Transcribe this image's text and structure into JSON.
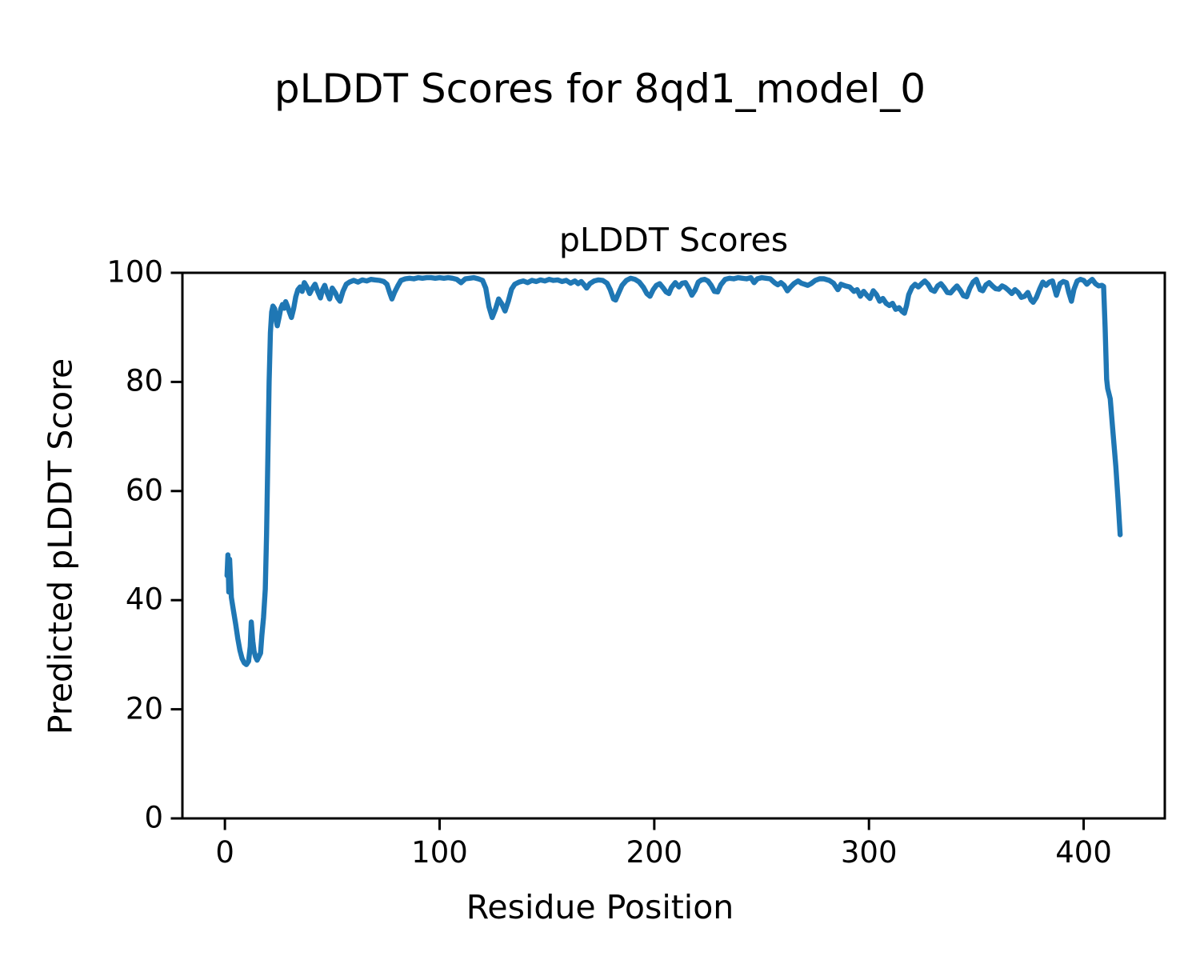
{
  "figure": {
    "suptitle": "pLDDT Scores for 8qd1_model_0",
    "axes_title": "pLDDT Scores",
    "xlabel": "Residue Position",
    "ylabel": "Predicted pLDDT Score",
    "background_color": "#ffffff",
    "text_color": "#000000"
  },
  "chart_data": {
    "type": "line",
    "title": "pLDDT Scores",
    "suptitle": "pLDDT Scores for 8qd1_model_0",
    "xlabel": "Residue Position",
    "ylabel": "Predicted pLDDT Score",
    "xlim": [
      -19.8,
      437.8
    ],
    "ylim": [
      0,
      100
    ],
    "xticks": [
      0,
      100,
      200,
      300,
      400
    ],
    "yticks": [
      0,
      20,
      40,
      60,
      80,
      100
    ],
    "grid": false,
    "legend": null,
    "line_color": "#1f77b4",
    "spine_color": "#000000",
    "series": [
      {
        "name": "pLDDT",
        "points": [
          [
            1,
            44.5
          ],
          [
            1.4,
            48.3
          ],
          [
            1.8,
            41.5
          ],
          [
            2.2,
            47.5
          ],
          [
            2.6,
            44
          ],
          [
            3,
            40.5
          ],
          [
            4,
            38
          ],
          [
            5,
            35.6
          ],
          [
            6,
            33
          ],
          [
            7,
            30.8
          ],
          [
            8,
            29.3
          ],
          [
            9,
            28.5
          ],
          [
            10,
            28.2
          ],
          [
            11,
            28.8
          ],
          [
            11.8,
            31.5
          ],
          [
            12.3,
            36
          ],
          [
            13,
            32.5
          ],
          [
            13.6,
            30.6
          ],
          [
            14.3,
            29.6
          ],
          [
            15,
            29
          ],
          [
            16,
            29.8
          ],
          [
            16.6,
            30.3
          ],
          [
            17.2,
            33.5
          ],
          [
            18,
            36.8
          ],
          [
            18.8,
            42
          ],
          [
            19.4,
            52
          ],
          [
            20,
            66
          ],
          [
            20.6,
            80
          ],
          [
            21.2,
            89
          ],
          [
            21.8,
            92.8
          ],
          [
            22.4,
            93.9
          ],
          [
            23.2,
            93.4
          ],
          [
            24,
            91
          ],
          [
            24.4,
            90.3
          ],
          [
            25.2,
            91.8
          ],
          [
            26,
            93.4
          ],
          [
            26.8,
            94.2
          ],
          [
            27.6,
            93.5
          ],
          [
            28.3,
            94.7
          ],
          [
            29.2,
            93.8
          ],
          [
            30,
            92.9
          ],
          [
            31,
            91.8
          ],
          [
            32,
            93.4
          ],
          [
            33,
            95.6
          ],
          [
            34,
            96.9
          ],
          [
            35,
            97.4
          ],
          [
            36,
            96.6
          ],
          [
            37,
            98.2
          ],
          [
            38.2,
            97.4
          ],
          [
            39.5,
            96.2
          ],
          [
            40.8,
            97.2
          ],
          [
            42,
            97.9
          ],
          [
            43.2,
            96.6
          ],
          [
            44.5,
            95.4
          ],
          [
            45.5,
            96.9
          ],
          [
            46.5,
            97.7
          ],
          [
            47.6,
            96.3
          ],
          [
            48.8,
            95.2
          ],
          [
            50,
            97.2
          ],
          [
            51.5,
            96.3
          ],
          [
            52.5,
            95.4
          ],
          [
            53.6,
            94.8
          ],
          [
            55,
            96.6
          ],
          [
            56.5,
            97.9
          ],
          [
            58,
            98.3
          ],
          [
            60,
            98.6
          ],
          [
            62,
            98.3
          ],
          [
            64,
            98.7
          ],
          [
            66,
            98.5
          ],
          [
            68,
            98.8
          ],
          [
            70,
            98.7
          ],
          [
            72,
            98.6
          ],
          [
            74,
            98.4
          ],
          [
            75.5,
            97.9
          ],
          [
            76.8,
            96.3
          ],
          [
            77.8,
            95.2
          ],
          [
            79,
            96.4
          ],
          [
            80.5,
            97.6
          ],
          [
            82,
            98.6
          ],
          [
            84,
            98.9
          ],
          [
            86,
            99
          ],
          [
            88,
            98.9
          ],
          [
            90,
            99.1
          ],
          [
            92,
            99
          ],
          [
            94,
            99.1
          ],
          [
            96,
            99.1
          ],
          [
            98,
            99
          ],
          [
            100,
            99.1
          ],
          [
            102,
            99
          ],
          [
            104,
            99.1
          ],
          [
            106,
            99
          ],
          [
            108,
            98.8
          ],
          [
            110,
            98.2
          ],
          [
            112,
            98.9
          ],
          [
            114,
            99
          ],
          [
            116,
            99.1
          ],
          [
            118,
            98.9
          ],
          [
            120,
            98.6
          ],
          [
            121.5,
            97.2
          ],
          [
            123,
            93.8
          ],
          [
            124.5,
            91.8
          ],
          [
            126,
            93.3
          ],
          [
            127.5,
            95.2
          ],
          [
            129,
            94.3
          ],
          [
            130.5,
            93
          ],
          [
            132,
            94.8
          ],
          [
            133.5,
            97
          ],
          [
            135,
            97.9
          ],
          [
            137,
            98.3
          ],
          [
            139,
            98.5
          ],
          [
            141,
            98.2
          ],
          [
            143,
            98.6
          ],
          [
            145,
            98.4
          ],
          [
            147,
            98.7
          ],
          [
            149,
            98.5
          ],
          [
            151,
            98.8
          ],
          [
            153,
            98.6
          ],
          [
            155,
            98.7
          ],
          [
            157,
            98.4
          ],
          [
            159,
            98.6
          ],
          [
            161,
            98.1
          ],
          [
            163,
            98.5
          ],
          [
            164.5,
            98
          ],
          [
            166,
            98.4
          ],
          [
            167.3,
            97.8
          ],
          [
            168.5,
            97.2
          ],
          [
            170,
            98
          ],
          [
            172,
            98.5
          ],
          [
            174,
            98.7
          ],
          [
            176,
            98.6
          ],
          [
            178,
            98.1
          ],
          [
            179.5,
            96.9
          ],
          [
            181,
            95.2
          ],
          [
            182,
            95
          ],
          [
            183.5,
            96.4
          ],
          [
            185,
            97.7
          ],
          [
            187,
            98.6
          ],
          [
            189,
            99
          ],
          [
            191,
            98.8
          ],
          [
            193,
            98.3
          ],
          [
            195,
            97.3
          ],
          [
            196.5,
            96.2
          ],
          [
            198,
            95.7
          ],
          [
            199.5,
            96.9
          ],
          [
            201,
            97.7
          ],
          [
            202.5,
            98
          ],
          [
            204,
            97.3
          ],
          [
            205.5,
            96.5
          ],
          [
            206.8,
            96.2
          ],
          [
            208,
            97.3
          ],
          [
            209.8,
            98.2
          ],
          [
            211.5,
            97.4
          ],
          [
            213,
            98.1
          ],
          [
            214.5,
            98.2
          ],
          [
            216,
            97.2
          ],
          [
            217.5,
            95.9
          ],
          [
            219,
            96.8
          ],
          [
            220.5,
            98.3
          ],
          [
            222,
            98.7
          ],
          [
            223.5,
            98.8
          ],
          [
            225,
            98.5
          ],
          [
            226.5,
            97.7
          ],
          [
            228,
            96.6
          ],
          [
            229.5,
            96.5
          ],
          [
            231,
            97.8
          ],
          [
            233,
            98.8
          ],
          [
            235,
            99
          ],
          [
            237,
            98.9
          ],
          [
            239,
            99.1
          ],
          [
            241,
            99
          ],
          [
            243,
            98.9
          ],
          [
            245,
            99.1
          ],
          [
            246.5,
            98.2
          ],
          [
            248,
            98.9
          ],
          [
            250,
            99.1
          ],
          [
            252,
            99
          ],
          [
            254,
            98.9
          ],
          [
            256,
            98.2
          ],
          [
            257.5,
            97.8
          ],
          [
            259,
            98.2
          ],
          [
            260.5,
            97.7
          ],
          [
            262,
            96.7
          ],
          [
            263.5,
            97.4
          ],
          [
            265,
            98
          ],
          [
            267,
            98.5
          ],
          [
            268.5,
            98.1
          ],
          [
            270,
            97.9
          ],
          [
            271.5,
            97.7
          ],
          [
            273,
            98
          ],
          [
            275,
            98.6
          ],
          [
            277,
            98.9
          ],
          [
            279,
            98.9
          ],
          [
            281.5,
            98.6
          ],
          [
            283.5,
            98.1
          ],
          [
            285.5,
            96.9
          ],
          [
            287,
            97.9
          ],
          [
            289,
            97.6
          ],
          [
            291,
            97.4
          ],
          [
            293,
            96.6
          ],
          [
            294.5,
            96.9
          ],
          [
            296,
            95.7
          ],
          [
            297.5,
            96.6
          ],
          [
            299,
            95.9
          ],
          [
            300.5,
            95.3
          ],
          [
            302,
            96.7
          ],
          [
            303.5,
            96
          ],
          [
            305,
            94.8
          ],
          [
            306.5,
            95.3
          ],
          [
            308,
            94.4
          ],
          [
            309.5,
            94
          ],
          [
            311,
            94.4
          ],
          [
            312.5,
            93.3
          ],
          [
            314,
            93.6
          ],
          [
            315.5,
            92.9
          ],
          [
            316.5,
            92.6
          ],
          [
            317.5,
            94
          ],
          [
            318.5,
            96
          ],
          [
            320,
            97.3
          ],
          [
            321.5,
            97.9
          ],
          [
            323,
            97.4
          ],
          [
            324.5,
            98
          ],
          [
            326,
            98.5
          ],
          [
            327.5,
            97.9
          ],
          [
            329,
            96.9
          ],
          [
            330.5,
            96.6
          ],
          [
            332,
            97.6
          ],
          [
            333.5,
            98
          ],
          [
            335,
            97.3
          ],
          [
            336.5,
            96.4
          ],
          [
            338,
            96.3
          ],
          [
            339.5,
            97
          ],
          [
            341,
            97.6
          ],
          [
            342.5,
            96.8
          ],
          [
            344,
            95.8
          ],
          [
            345.5,
            95.6
          ],
          [
            347,
            97.2
          ],
          [
            348.5,
            98.3
          ],
          [
            350,
            98.8
          ],
          [
            351.8,
            96.9
          ],
          [
            353,
            96.7
          ],
          [
            354.5,
            97.8
          ],
          [
            356,
            98.2
          ],
          [
            357.5,
            97.6
          ],
          [
            359,
            97.1
          ],
          [
            360.5,
            97
          ],
          [
            362,
            97.6
          ],
          [
            363.5,
            97.3
          ],
          [
            365,
            96.8
          ],
          [
            366.5,
            96.2
          ],
          [
            368,
            96.9
          ],
          [
            369.5,
            96.4
          ],
          [
            371,
            95.5
          ],
          [
            372.5,
            95.7
          ],
          [
            374,
            96.4
          ],
          [
            375.5,
            95
          ],
          [
            376.5,
            94.6
          ],
          [
            378,
            95.5
          ],
          [
            379.5,
            97
          ],
          [
            381,
            98.3
          ],
          [
            382.5,
            97.7
          ],
          [
            384,
            98.3
          ],
          [
            385.5,
            98.5
          ],
          [
            387.3,
            95.9
          ],
          [
            389,
            98
          ],
          [
            390.5,
            98.4
          ],
          [
            392,
            98.2
          ],
          [
            393,
            96.5
          ],
          [
            394.3,
            94.8
          ],
          [
            395.5,
            97
          ],
          [
            397,
            98.5
          ],
          [
            398.5,
            98.8
          ],
          [
            400,
            98.6
          ],
          [
            401.5,
            97.9
          ],
          [
            402.5,
            98.3
          ],
          [
            404,
            98.8
          ],
          [
            405.5,
            98
          ],
          [
            407,
            97.6
          ],
          [
            408.5,
            97.7
          ],
          [
            409.3,
            97.5
          ],
          [
            410,
            90
          ],
          [
            410.7,
            80.5
          ],
          [
            411.2,
            78.8
          ],
          [
            412.4,
            76.9
          ],
          [
            413.5,
            71.5
          ],
          [
            415,
            64.5
          ],
          [
            416,
            58.5
          ],
          [
            417,
            52
          ]
        ]
      }
    ]
  }
}
